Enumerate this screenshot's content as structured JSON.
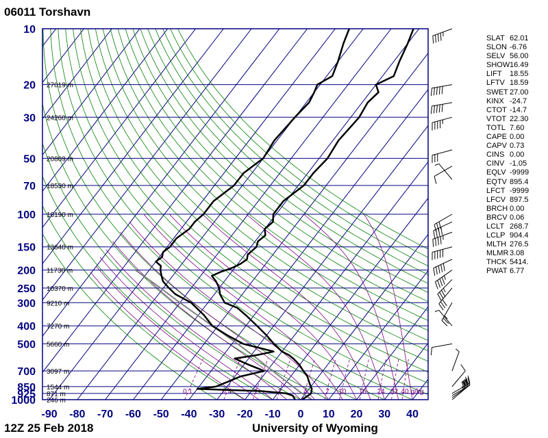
{
  "header": {
    "station": "06011  Torshavn"
  },
  "footer": {
    "date": "12Z 25 Feb 2018",
    "source": "University of Wyoming"
  },
  "chart_data": {
    "type": "skew-t log-p",
    "x_ticks": [
      -90,
      -80,
      -70,
      -60,
      -50,
      -40,
      -30,
      -20,
      -10,
      0,
      10,
      20,
      30,
      40
    ],
    "pressure_levels": [
      10,
      20,
      30,
      50,
      70,
      100,
      150,
      200,
      250,
      300,
      400,
      500,
      700,
      850,
      925,
      1000
    ],
    "height_labels": [
      {
        "p": 20,
        "text": "27019 m"
      },
      {
        "p": 30,
        "text": "24260 m"
      },
      {
        "p": 50,
        "text": "20809 m"
      },
      {
        "p": 70,
        "text": "18530 m"
      },
      {
        "p": 100,
        "text": "16190 m"
      },
      {
        "p": 150,
        "text": "13640 m"
      },
      {
        "p": 200,
        "text": "11730 m"
      },
      {
        "p": 250,
        "text": "10370 m"
      },
      {
        "p": 300,
        "text": "9210 m"
      },
      {
        "p": 400,
        "text": "7270 m"
      },
      {
        "p": 500,
        "text": "5660 m"
      },
      {
        "p": 700,
        "text": "3097 m"
      },
      {
        "p": 850,
        "text": "1544 m"
      },
      {
        "p": 925,
        "text": "871 m"
      },
      {
        "p": 1000,
        "text": "246 m"
      }
    ],
    "mixing_ratio_labels": [
      "0.1",
      "0.4",
      "1",
      "2",
      "4",
      "7",
      "10",
      "16",
      "24",
      "32",
      "40",
      "g/kg"
    ],
    "temperature": [
      {
        "p": 1000,
        "t": 0.5
      },
      {
        "p": 975,
        "t": 1
      },
      {
        "p": 950,
        "t": 1.5
      },
      {
        "p": 925,
        "t": 2
      },
      {
        "p": 900,
        "t": 1.5
      },
      {
        "p": 875,
        "t": 1
      },
      {
        "p": 850,
        "t": 0
      },
      {
        "p": 800,
        "t": -2
      },
      {
        "p": 750,
        "t": -4
      },
      {
        "p": 700,
        "t": -7
      },
      {
        "p": 650,
        "t": -10
      },
      {
        "p": 600,
        "t": -14
      },
      {
        "p": 575,
        "t": -16.5
      },
      {
        "p": 550,
        "t": -20
      },
      {
        "p": 500,
        "t": -25
      },
      {
        "p": 450,
        "t": -30
      },
      {
        "p": 400,
        "t": -36
      },
      {
        "p": 350,
        "t": -43
      },
      {
        "p": 320,
        "t": -48
      },
      {
        "p": 300,
        "t": -54
      },
      {
        "p": 270,
        "t": -58
      },
      {
        "p": 250,
        "t": -60
      },
      {
        "p": 230,
        "t": -63
      },
      {
        "p": 215,
        "t": -66
      },
      {
        "p": 205,
        "t": -64
      },
      {
        "p": 195,
        "t": -61
      },
      {
        "p": 185,
        "t": -59
      },
      {
        "p": 175,
        "t": -58
      },
      {
        "p": 165,
        "t": -59
      },
      {
        "p": 150,
        "t": -58
      },
      {
        "p": 140,
        "t": -59
      },
      {
        "p": 130,
        "t": -58
      },
      {
        "p": 120,
        "t": -60
      },
      {
        "p": 110,
        "t": -59
      },
      {
        "p": 100,
        "t": -61
      },
      {
        "p": 85,
        "t": -61
      },
      {
        "p": 70,
        "t": -58
      },
      {
        "p": 60,
        "t": -58
      },
      {
        "p": 50,
        "t": -57
      },
      {
        "p": 40,
        "t": -58
      },
      {
        "p": 30,
        "t": -57
      },
      {
        "p": 25,
        "t": -58
      },
      {
        "p": 22,
        "t": -57
      },
      {
        "p": 20,
        "t": -60
      },
      {
        "p": 18,
        "t": -56
      },
      {
        "p": 15,
        "t": -58
      },
      {
        "p": 12,
        "t": -60
      },
      {
        "p": 10,
        "t": -62
      }
    ],
    "dewpoint": [
      {
        "p": 1000,
        "t": -2
      },
      {
        "p": 950,
        "t": -4
      },
      {
        "p": 925,
        "t": -7
      },
      {
        "p": 900,
        "t": -16
      },
      {
        "p": 875,
        "t": -40
      },
      {
        "p": 850,
        "t": -34
      },
      {
        "p": 800,
        "t": -31
      },
      {
        "p": 750,
        "t": -28
      },
      {
        "p": 700,
        "t": -21
      },
      {
        "p": 650,
        "t": -28
      },
      {
        "p": 600,
        "t": -35
      },
      {
        "p": 575,
        "t": -28
      },
      {
        "p": 550,
        "t": -23
      },
      {
        "p": 500,
        "t": -36
      },
      {
        "p": 450,
        "t": -44
      },
      {
        "p": 400,
        "t": -52
      },
      {
        "p": 350,
        "t": -58
      },
      {
        "p": 300,
        "t": -66
      },
      {
        "p": 270,
        "t": -74
      },
      {
        "p": 250,
        "t": -78
      },
      {
        "p": 230,
        "t": -82
      },
      {
        "p": 215,
        "t": -84
      },
      {
        "p": 200,
        "t": -86
      },
      {
        "p": 190,
        "t": -87
      },
      {
        "p": 180,
        "t": -90
      },
      {
        "p": 170,
        "t": -89
      },
      {
        "p": 160,
        "t": -90
      },
      {
        "p": 150,
        "t": -89
      },
      {
        "p": 135,
        "t": -89
      },
      {
        "p": 120,
        "t": -87
      },
      {
        "p": 110,
        "t": -87
      },
      {
        "p": 100,
        "t": -86
      },
      {
        "p": 85,
        "t": -86
      },
      {
        "p": 70,
        "t": -83
      },
      {
        "p": 60,
        "t": -83
      },
      {
        "p": 50,
        "t": -80
      },
      {
        "p": 40,
        "t": -81
      },
      {
        "p": 30,
        "t": -80
      },
      {
        "p": 25,
        "t": -79
      },
      {
        "p": 22,
        "t": -80
      },
      {
        "p": 20,
        "t": -81
      },
      {
        "p": 18,
        "t": -78
      },
      {
        "p": 15,
        "t": -80
      },
      {
        "p": 12,
        "t": -83
      },
      {
        "p": 10,
        "t": -85
      }
    ],
    "parcel": [
      {
        "p": 1000,
        "t": 4
      },
      {
        "p": 900,
        "t": -3
      },
      {
        "p": 800,
        "t": -10
      },
      {
        "p": 700,
        "t": -18
      },
      {
        "p": 600,
        "t": -27
      },
      {
        "p": 500,
        "t": -38
      },
      {
        "p": 400,
        "t": -52
      },
      {
        "p": 300,
        "t": -70
      },
      {
        "p": 250,
        "t": -81
      },
      {
        "p": 200,
        "t": -95
      }
    ],
    "wind": [
      {
        "p": 10,
        "dir": 250,
        "kt": 45
      },
      {
        "p": 20,
        "dir": 260,
        "kt": 50
      },
      {
        "p": 25,
        "dir": 260,
        "kt": 50
      },
      {
        "p": 30,
        "dir": 255,
        "kt": 45
      },
      {
        "p": 45,
        "dir": 255,
        "kt": 30
      },
      {
        "p": 55,
        "dir": 240,
        "kt": 10
      },
      {
        "p": 65,
        "dir": 320,
        "kt": 5
      },
      {
        "p": 100,
        "dir": 240,
        "kt": 30
      },
      {
        "p": 110,
        "dir": 245,
        "kt": 40
      },
      {
        "p": 125,
        "dir": 250,
        "kt": 45
      },
      {
        "p": 150,
        "dir": 255,
        "kt": 50
      },
      {
        "p": 175,
        "dir": 245,
        "kt": 50
      },
      {
        "p": 200,
        "dir": 235,
        "kt": 45
      },
      {
        "p": 225,
        "dir": 225,
        "kt": 35
      },
      {
        "p": 250,
        "dir": 220,
        "kt": 30
      },
      {
        "p": 300,
        "dir": 210,
        "kt": 25
      },
      {
        "p": 400,
        "dir": 320,
        "kt": 5
      },
      {
        "p": 500,
        "dir": 260,
        "kt": 10
      },
      {
        "p": 700,
        "dir": 20,
        "kt": 5
      },
      {
        "p": 850,
        "dir": 40,
        "kt": 10
      },
      {
        "p": 925,
        "dir": 60,
        "kt": 25
      },
      {
        "p": 950,
        "dir": 60,
        "kt": 30
      },
      {
        "p": 975,
        "dir": 55,
        "kt": 30
      },
      {
        "p": 1000,
        "dir": 50,
        "kt": 25
      }
    ],
    "colors": {
      "isotherm": "#000080",
      "dry_adiabat": "#008000",
      "moist_adiabat": "#800080",
      "mixing_ratio": "#800080",
      "temperature": "#000000",
      "parcel": "#808080",
      "axis_labels": "#000080"
    }
  },
  "indices": [
    {
      "key": "SLAT",
      "value": "62.01"
    },
    {
      "key": "SLON",
      "value": "-6.76"
    },
    {
      "key": "SELV",
      "value": "56.00"
    },
    {
      "key": "SHOW",
      "value": "16.49"
    },
    {
      "key": "LIFT",
      "value": "18.55"
    },
    {
      "key": "LFTV",
      "value": "18.59"
    },
    {
      "key": "SWET",
      "value": "27.00"
    },
    {
      "key": "KINX",
      "value": "-24.7"
    },
    {
      "key": "CTOT",
      "value": "-14.7"
    },
    {
      "key": "VTOT",
      "value": "22.30"
    },
    {
      "key": "TOTL",
      "value": "7.60"
    },
    {
      "key": "CAPE",
      "value": "0.00"
    },
    {
      "key": "CAPV",
      "value": "0.73"
    },
    {
      "key": "CINS",
      "value": "0.00"
    },
    {
      "key": "CINV",
      "value": "-1.05"
    },
    {
      "key": "EQLV",
      "value": "-9999"
    },
    {
      "key": "EQTV",
      "value": "895.4"
    },
    {
      "key": "LFCT",
      "value": "-9999"
    },
    {
      "key": "LFCV",
      "value": "897.5"
    },
    {
      "key": "BRCH",
      "value": "0.00"
    },
    {
      "key": "BRCV",
      "value": "0.06"
    },
    {
      "key": "LCLT",
      "value": "268.7"
    },
    {
      "key": "LCLP",
      "value": "904.4"
    },
    {
      "key": "MLTH",
      "value": "276.5"
    },
    {
      "key": "MLMR",
      "value": "3.08"
    },
    {
      "key": "THCK",
      "value": "5414."
    },
    {
      "key": "PWAT",
      "value": "6.77"
    }
  ]
}
